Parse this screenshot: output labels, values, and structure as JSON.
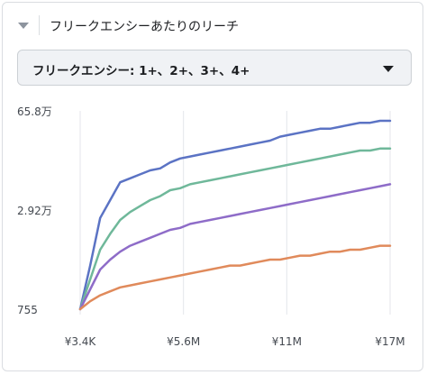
{
  "header": {
    "title": "フリークエンシーあたりのリーチ",
    "collapse_icon": "caret-down-icon"
  },
  "dropdown": {
    "selected": "フリークエンシー: 1+、2+、3+、4+",
    "icon": "caret-down-icon"
  },
  "chart_data": {
    "type": "line",
    "x_ticks": [
      "¥3.4K",
      "¥5.6M",
      "¥11M",
      "¥17M"
    ],
    "y_ticks": [
      "65.8万",
      "2.92万",
      "755"
    ],
    "series": [
      {
        "color": "#5b73c4",
        "values": [
          0.0,
          0.22,
          0.46,
          0.55,
          0.64,
          0.66,
          0.68,
          0.7,
          0.71,
          0.74,
          0.76,
          0.77,
          0.78,
          0.79,
          0.8,
          0.81,
          0.82,
          0.83,
          0.84,
          0.85,
          0.87,
          0.88,
          0.89,
          0.9,
          0.91,
          0.91,
          0.92,
          0.93,
          0.94,
          0.94,
          0.95,
          0.95
        ]
      },
      {
        "color": "#6fb89a",
        "values": [
          0.0,
          0.15,
          0.3,
          0.38,
          0.45,
          0.49,
          0.52,
          0.55,
          0.57,
          0.6,
          0.61,
          0.63,
          0.64,
          0.65,
          0.66,
          0.67,
          0.68,
          0.69,
          0.7,
          0.71,
          0.72,
          0.73,
          0.74,
          0.75,
          0.76,
          0.77,
          0.78,
          0.79,
          0.8,
          0.8,
          0.81,
          0.81
        ]
      },
      {
        "color": "#8e6cc8",
        "values": [
          0.0,
          0.1,
          0.2,
          0.25,
          0.29,
          0.32,
          0.34,
          0.36,
          0.38,
          0.4,
          0.41,
          0.43,
          0.44,
          0.45,
          0.46,
          0.47,
          0.48,
          0.49,
          0.5,
          0.51,
          0.52,
          0.53,
          0.54,
          0.55,
          0.56,
          0.57,
          0.58,
          0.59,
          0.6,
          0.61,
          0.62,
          0.63
        ]
      },
      {
        "color": "#e08a5b",
        "values": [
          0.0,
          0.04,
          0.07,
          0.09,
          0.11,
          0.12,
          0.13,
          0.14,
          0.15,
          0.16,
          0.17,
          0.18,
          0.19,
          0.2,
          0.21,
          0.22,
          0.22,
          0.23,
          0.24,
          0.25,
          0.25,
          0.26,
          0.27,
          0.27,
          0.28,
          0.29,
          0.29,
          0.3,
          0.3,
          0.31,
          0.32,
          0.32
        ]
      }
    ],
    "grid": "vertical",
    "legend": "none"
  }
}
